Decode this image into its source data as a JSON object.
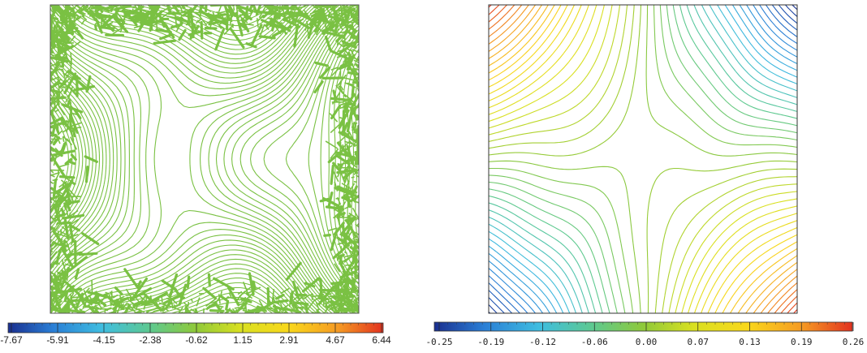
{
  "chart_data": [
    {
      "type": "contour",
      "title": "",
      "colorbar": {
        "ticks": [
          "-7.67",
          "-5.91",
          "-4.15",
          "-2.38",
          "-0.62",
          "1.15",
          "2.91",
          "4.67",
          "6.44"
        ],
        "vmin": -7.67,
        "vmax": 6.44,
        "colormap": "jet"
      },
      "contour_color": "#7ac143",
      "boundary_noise": true,
      "saddle": "center"
    },
    {
      "type": "contour",
      "title": "",
      "colorbar": {
        "ticks": [
          "-0.25",
          "-0.19",
          "-0.12",
          "-0.06",
          "0.00",
          "0.07",
          "0.13",
          "0.19",
          "0.26"
        ],
        "vmin": -0.25,
        "vmax": 0.26,
        "colormap": "jet"
      },
      "field": "xy",
      "saddle": "center"
    }
  ],
  "colors": {
    "jet": [
      "#1a2f8f",
      "#2a7fd6",
      "#3fbde0",
      "#5ec98f",
      "#8fc93a",
      "#d9e021",
      "#f9d71c",
      "#f59a23",
      "#e2321f"
    ]
  }
}
